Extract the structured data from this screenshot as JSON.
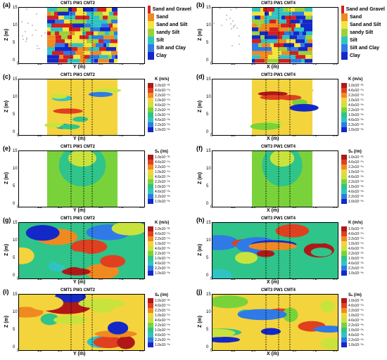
{
  "panels": [
    {
      "label": "(a)",
      "wells": "CMT1 PW1 CMT2",
      "xlabel": "Y (m)",
      "ylabel": "Z (m)",
      "type": "lith"
    },
    {
      "label": "(b)",
      "wells": "CMT3 PW1 CMT4",
      "xlabel": "X (m)",
      "ylabel": "Z (m)",
      "type": "lith"
    },
    {
      "label": "(c)",
      "wells": "CMT1 PW1 CMT2",
      "xlabel": "Y (m)",
      "ylabel": "Z (m)",
      "type": "k"
    },
    {
      "label": "(d)",
      "wells": "CMT3 PW1 CMT4",
      "xlabel": "X (m)",
      "ylabel": "Z (m)",
      "type": "k"
    },
    {
      "label": "(e)",
      "wells": "CMT1 PW1 CMT2",
      "xlabel": "Y (m)",
      "ylabel": "Z (m)",
      "type": "s"
    },
    {
      "label": "(f)",
      "wells": "CMT3 PW1 CMT4",
      "xlabel": "X (m)",
      "ylabel": "Z (m)",
      "type": "s"
    },
    {
      "label": "(g)",
      "wells": "CMT1 PW1 CMT2",
      "xlabel": "Y (m)",
      "ylabel": "Z (m)",
      "type": "k"
    },
    {
      "label": "(h)",
      "wells": "CMT3 PW1 CMT4",
      "xlabel": "X (m)",
      "ylabel": "Z (m)",
      "type": "k"
    },
    {
      "label": "(i)",
      "wells": "CMT1 PW1 CMT2",
      "xlabel": "Y (m)",
      "ylabel": "Z (m)",
      "type": "s"
    },
    {
      "label": "(j)",
      "wells": "CMT3 PW1 CMT4",
      "xlabel": "X (m)",
      "ylabel": "Z (m)",
      "type": "s"
    }
  ],
  "yticks": [
    "15",
    "10",
    "5",
    "0"
  ],
  "xticks": [
    "0",
    "15",
    "30",
    "45",
    "60",
    "75",
    "90"
  ],
  "lithology": [
    {
      "label": "Sand and Gravel",
      "color": "#d42020"
    },
    {
      "label": "Sand",
      "color": "#f08a20"
    },
    {
      "label": "Sand and Silt",
      "color": "#f4e43c"
    },
    {
      "label": "sandy Silt",
      "color": "#9ad23a"
    },
    {
      "label": "Silt",
      "color": "#2fc4c4"
    },
    {
      "label": "Silt and Clay",
      "color": "#2f7ae6"
    },
    {
      "label": "Clay",
      "color": "#1428c8"
    }
  ],
  "k_legend": {
    "title": "K (m/s)",
    "ticks": [
      "1.0x10⁻⁰³",
      "4.6x10⁻⁰⁴",
      "2.2x10⁻⁰⁴",
      "1.0x10⁻⁰⁴",
      "4.6x10⁻⁰⁵",
      "2.2x10⁻⁰⁵",
      "1.0x10⁻⁰⁵",
      "4.6x10⁻⁰⁶",
      "2.2x10⁻⁰⁶",
      "1.0x10⁻⁰⁶"
    ]
  },
  "s_legend": {
    "title": "Sₛ (/m)",
    "ticks": [
      "1.0x10⁻⁰³",
      "4.6x10⁻⁰⁴",
      "2.2x10⁻⁰⁴",
      "1.0x10⁻⁰⁴",
      "4.6x10⁻⁰⁵",
      "2.2x10⁻⁰⁵",
      "1.0x10⁻⁰⁵",
      "4.6x10⁻⁰⁶",
      "2.2x10⁻⁰⁶",
      "1.0x10⁻⁰⁶"
    ]
  },
  "scale_colors": [
    "#b01818",
    "#e04020",
    "#f08a20",
    "#f4d43c",
    "#c8e43c",
    "#7ad23a",
    "#2fc48a",
    "#2fc4c4",
    "#2f7ae6",
    "#1428c8"
  ]
}
